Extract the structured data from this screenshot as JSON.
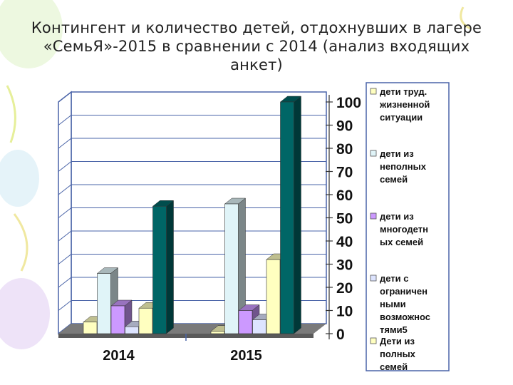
{
  "title": "Контингент и количество детей, отдохнувших в лагере «СемьЯ»-2015 в сравнении с 2014 (анализ входящих анкет)",
  "chart_data": {
    "type": "bar",
    "categories": [
      "2014",
      "2015"
    ],
    "series": [
      {
        "name": "дети труд. жизненной ситуации",
        "values": [
          5,
          1
        ],
        "color": "#FFFFC0"
      },
      {
        "name": "дети из неполных семей",
        "values": [
          26,
          56
        ],
        "color": "#E0F4F8"
      },
      {
        "name": "дети из многодетн ых семей",
        "values": [
          12,
          10
        ],
        "color": "#CC99FF"
      },
      {
        "name": "дети с ограничен ными возможнос тями5",
        "values": [
          3,
          6
        ],
        "color": "#DDE4FF"
      },
      {
        "name": "Дети из полных семей",
        "values": [
          11,
          32
        ],
        "color": "#FFFFC0"
      },
      {
        "name": "",
        "values": [
          55,
          100
        ],
        "color": "#006666"
      }
    ],
    "yticks": [
      "0",
      "10",
      "20",
      "30",
      "40",
      "50",
      "60",
      "70",
      "80",
      "90",
      "100"
    ],
    "ylim": [
      0,
      100
    ],
    "grid": true,
    "legend_position": "right"
  }
}
